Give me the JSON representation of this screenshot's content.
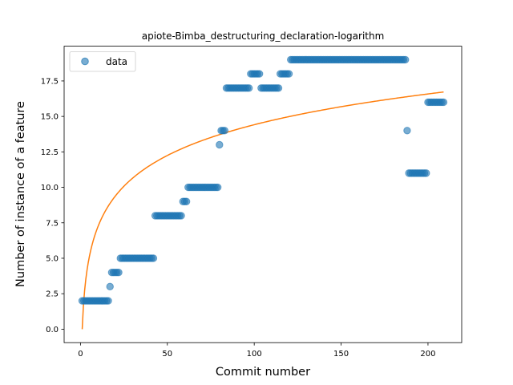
{
  "chart_data": {
    "type": "scatter",
    "title": "apiote-Bimba_destructuring_declaration-logarithm",
    "xlabel": "Commit number",
    "ylabel": "Number of instance of a feature",
    "xlim": [
      -9.4,
      219.4
    ],
    "ylim": [
      -0.95,
      19.95
    ],
    "xticks": [
      0,
      50,
      100,
      150,
      200
    ],
    "yticks": [
      0.0,
      2.5,
      5.0,
      7.5,
      10.0,
      12.5,
      15.0,
      17.5
    ],
    "ytick_labels": [
      "0.0",
      "2.5",
      "5.0",
      "7.5",
      "10.0",
      "12.5",
      "15.0",
      "17.5"
    ],
    "grid": false,
    "legend": {
      "position": "top-left",
      "entries": [
        "data"
      ]
    },
    "colors": {
      "points": "#1f77b4",
      "fit": "#ff7f0e"
    },
    "series": [
      {
        "name": "data",
        "kind": "scatter",
        "segments": [
          {
            "x_from": 1,
            "x_to": 16,
            "y": 2
          },
          {
            "x_from": 17,
            "x_to": 17,
            "y": 3
          },
          {
            "x_from": 18,
            "x_to": 22,
            "y": 4
          },
          {
            "x_from": 23,
            "x_to": 42,
            "y": 5
          },
          {
            "x_from": 43,
            "x_to": 58,
            "y": 8
          },
          {
            "x_from": 59,
            "x_to": 61,
            "y": 9
          },
          {
            "x_from": 62,
            "x_to": 79,
            "y": 10
          },
          {
            "x_from": 80,
            "x_to": 80,
            "y": 13
          },
          {
            "x_from": 81,
            "x_to": 83,
            "y": 14
          },
          {
            "x_from": 84,
            "x_to": 97,
            "y": 17
          },
          {
            "x_from": 98,
            "x_to": 103,
            "y": 18
          },
          {
            "x_from": 104,
            "x_to": 114,
            "y": 17
          },
          {
            "x_from": 115,
            "x_to": 120,
            "y": 18
          },
          {
            "x_from": 121,
            "x_to": 187,
            "y": 19
          },
          {
            "x_from": 188,
            "x_to": 188,
            "y": 14
          },
          {
            "x_from": 189,
            "x_to": 199,
            "y": 11
          },
          {
            "x_from": 200,
            "x_to": 209,
            "y": 16
          }
        ]
      },
      {
        "kind": "line",
        "formula": "a*ln(x)+b",
        "a": 3.13,
        "b": 0.0,
        "x_range": [
          1,
          209
        ]
      }
    ]
  }
}
